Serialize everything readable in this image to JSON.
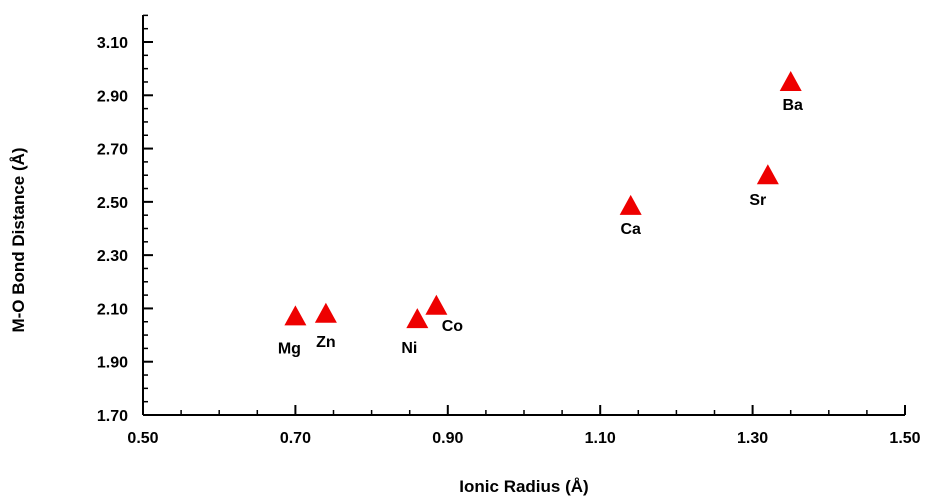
{
  "chart_data": {
    "type": "scatter",
    "title": "",
    "xlabel": "Ionic Radius (Å)",
    "ylabel": "M-O Bond Distance (Å)",
    "xlim": [
      0.5,
      1.5
    ],
    "ylim": [
      1.7,
      3.2
    ],
    "xticks": [
      0.5,
      0.7,
      0.9,
      1.1,
      1.3,
      1.5
    ],
    "yticks": [
      1.7,
      1.9,
      2.1,
      2.3,
      2.5,
      2.7,
      2.9,
      3.1
    ],
    "xtick_labels": [
      "0.50",
      "0.70",
      "0.90",
      "1.10",
      "1.30",
      "1.50"
    ],
    "ytick_labels": [
      "1.70",
      "1.90",
      "2.10",
      "2.30",
      "2.50",
      "2.70",
      "2.90",
      "3.10"
    ],
    "grid": false,
    "legend": false,
    "marker": "triangle",
    "marker_color": "#ee0000",
    "points": [
      {
        "label": "Mg",
        "x": 0.7,
        "y": 2.07
      },
      {
        "label": "Zn",
        "x": 0.74,
        "y": 2.08
      },
      {
        "label": "Ni",
        "x": 0.86,
        "y": 2.06
      },
      {
        "label": "Co",
        "x": 0.885,
        "y": 2.11
      },
      {
        "label": "Ca",
        "x": 1.14,
        "y": 2.485
      },
      {
        "label": "Sr",
        "x": 1.32,
        "y": 2.6
      },
      {
        "label": "Ba",
        "x": 1.35,
        "y": 2.95
      }
    ]
  }
}
